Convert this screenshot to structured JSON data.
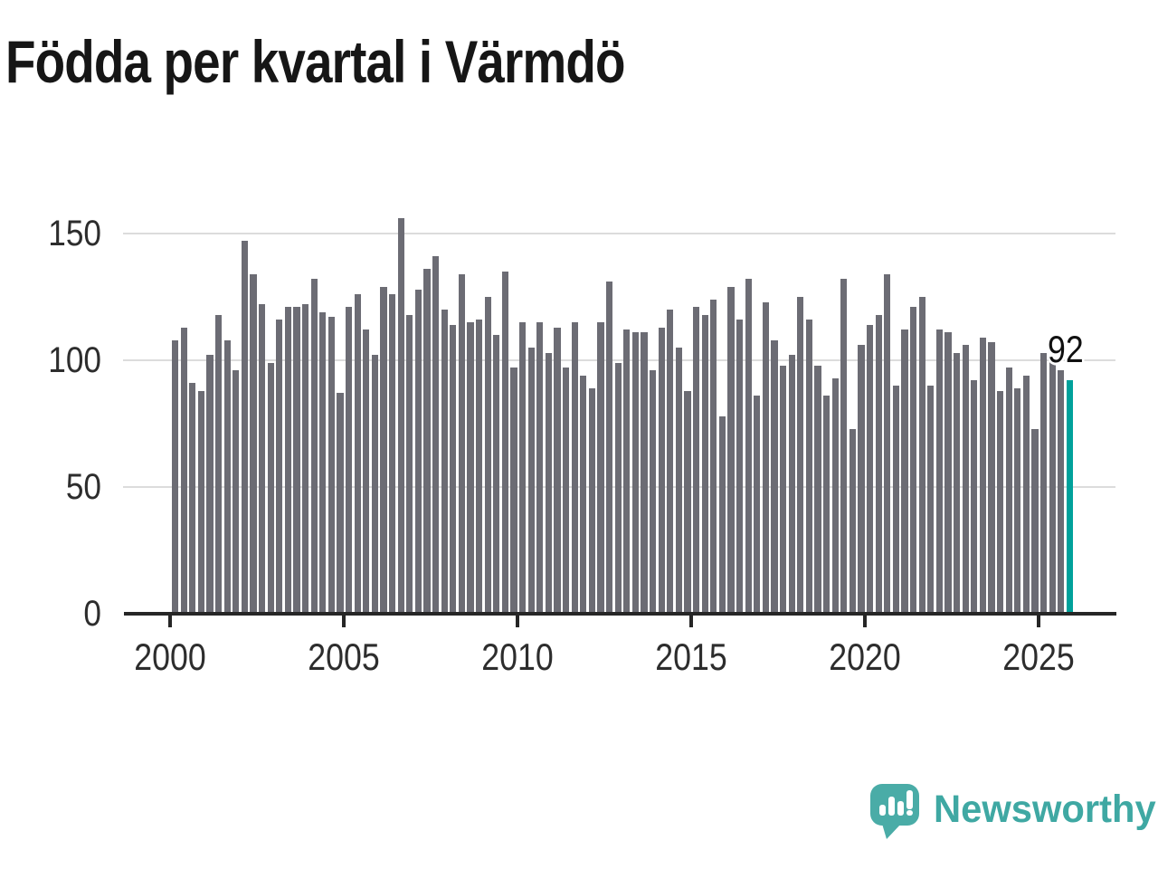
{
  "title": "Födda per kvartal i Värmdö",
  "annotation": {
    "last_value_label": "92"
  },
  "logo": {
    "text": "Newsworthy",
    "mark": "speech-bubble-bar-chart-exclamation"
  },
  "colors": {
    "bar": "#6c6c74",
    "highlight": "#00a19b",
    "grid": "#dcdcdc",
    "axis": "#262626",
    "tick_text": "#2d2d2d",
    "title_text": "#161616",
    "logo_teal": "#3fa8a3"
  },
  "chart_data": {
    "type": "bar",
    "title": "Födda per kvartal i Värmdö",
    "xlabel": "",
    "ylabel": "",
    "frequency": "quarterly",
    "start_period": "2000 Q1",
    "end_period": "2025 Q4",
    "x_tick_labels": [
      "2000",
      "2005",
      "2010",
      "2015",
      "2020",
      "2025"
    ],
    "y_tick_labels": [
      "0",
      "50",
      "100",
      "150"
    ],
    "y_ticks": [
      0,
      50,
      100,
      150
    ],
    "ylim": [
      0,
      160
    ],
    "grid": "horizontal",
    "legend_position": "none",
    "series": [
      {
        "name": "Födda per kvartal",
        "values": [
          108,
          113,
          91,
          88,
          102,
          118,
          108,
          96,
          147,
          134,
          122,
          99,
          116,
          121,
          121,
          122,
          132,
          119,
          117,
          87,
          121,
          126,
          112,
          102,
          129,
          126,
          156,
          118,
          128,
          136,
          141,
          120,
          114,
          134,
          115,
          116,
          125,
          110,
          135,
          97,
          115,
          105,
          115,
          103,
          113,
          97,
          115,
          94,
          89,
          115,
          131,
          99,
          112,
          111,
          111,
          96,
          113,
          120,
          105,
          88,
          121,
          118,
          124,
          78,
          129,
          116,
          132,
          86,
          123,
          108,
          98,
          102,
          125,
          116,
          98,
          86,
          93,
          132,
          73,
          106,
          114,
          118,
          134,
          90,
          112,
          121,
          125,
          90,
          112,
          111,
          103,
          106,
          92,
          109,
          107,
          88,
          97,
          89,
          94,
          73,
          103,
          101,
          96,
          92
        ]
      }
    ],
    "highlight": {
      "index": 103,
      "value": 92,
      "label": "92",
      "color": "#00a19b"
    }
  }
}
